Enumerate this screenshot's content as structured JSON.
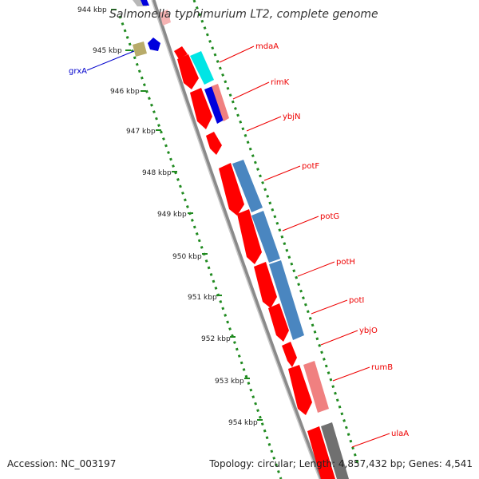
{
  "title": "Salmonella typhimurium LT2, complete genome",
  "footer": {
    "accession": "Accession: NC_003197",
    "topology": "Topology: circular; Length: 4,857,432 bp; Genes: 4,541"
  },
  "kbp_labels": [
    {
      "kbp": 944,
      "text": "944 kbp"
    },
    {
      "kbp": 945,
      "text": "945 kbp"
    },
    {
      "kbp": 946,
      "text": "946 kbp"
    },
    {
      "kbp": 947,
      "text": "947 kbp"
    },
    {
      "kbp": 948,
      "text": "948 kbp"
    },
    {
      "kbp": 949,
      "text": "949 kbp"
    },
    {
      "kbp": 950,
      "text": "950 kbp"
    },
    {
      "kbp": 951,
      "text": "951 kbp"
    },
    {
      "kbp": 952,
      "text": "952 kbp"
    },
    {
      "kbp": 953,
      "text": "953 kbp"
    },
    {
      "kbp": 954,
      "text": "954 kbp"
    }
  ],
  "genes": [
    {
      "name": "grxA",
      "color": "#0000cc"
    },
    {
      "name": "mdaA",
      "color": "#cc0000"
    },
    {
      "name": "rimK",
      "color": "#cc0000"
    },
    {
      "name": "ybjN",
      "color": "#cc0000"
    },
    {
      "name": "potF",
      "color": "#cc0000"
    },
    {
      "name": "potG",
      "color": "#cc0000"
    },
    {
      "name": "potH",
      "color": "#cc0000"
    },
    {
      "name": "potI",
      "color": "#cc0000"
    },
    {
      "name": "ybjO",
      "color": "#cc0000"
    },
    {
      "name": "rumB",
      "color": "#cc0000"
    },
    {
      "name": "ulaA",
      "color": "#cc0000"
    }
  ],
  "colors": {
    "backbone": "#8a8a8a",
    "dotted_ring": "#1f8a1f",
    "cds": "#ff0000",
    "cog_blue": "#4a86c0",
    "cog_cyan": "#00e5e5",
    "cog_pink": "#f08080",
    "cog_olive": "#b8ab6a",
    "cog_gray": "#707070"
  }
}
